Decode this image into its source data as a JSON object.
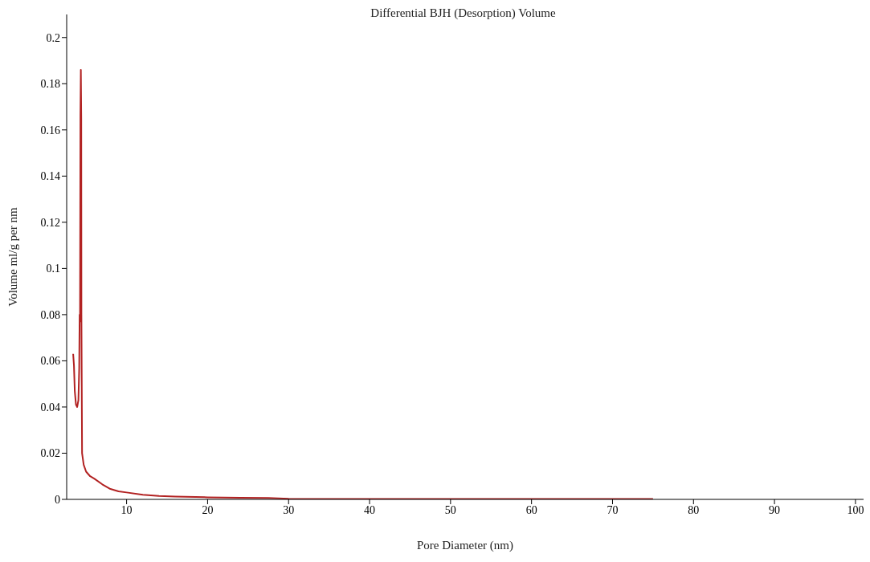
{
  "chart_data": {
    "type": "line",
    "title": "Differential BJH (Desorption) Volume",
    "xlabel": "Pore Diameter (nm)",
    "ylabel": "Volume ml/g per nm",
    "x": [
      3.4,
      3.5,
      3.6,
      3.75,
      3.9,
      4.05,
      4.15,
      4.2,
      4.25,
      4.3,
      4.35,
      4.4,
      4.42,
      4.5,
      4.7,
      5,
      5.5,
      6,
      7,
      8,
      9,
      10,
      12,
      14,
      16,
      20,
      24,
      27.5,
      30,
      40,
      50,
      60,
      70,
      75
    ],
    "series": [
      {
        "color": "#b22222",
        "values": [
          0.063,
          0.058,
          0.047,
          0.041,
          0.04,
          0.043,
          0.057,
          0.08,
          0.077,
          0.166,
          0.186,
          0.165,
          0.08,
          0.02,
          0.015,
          0.012,
          0.01,
          0.009,
          0.0065,
          0.0045,
          0.0035,
          0.003,
          0.002,
          0.0015,
          0.0012,
          0.0009,
          0.0007,
          0.0006,
          0.0003,
          0.0002,
          0.0002,
          0.0002,
          0.0002,
          0.0002
        ]
      }
    ],
    "xlim": [
      2.6,
      101
    ],
    "xticks": [
      10,
      20,
      30,
      40,
      50,
      60,
      70,
      80,
      90,
      100
    ],
    "ylim": [
      0,
      0.21
    ],
    "yticks": [
      0,
      0.02,
      0.04,
      0.06,
      0.08,
      0.1,
      0.12,
      0.14,
      0.16,
      0.18,
      0.2
    ],
    "grid": false,
    "legend": false,
    "marker": "none",
    "line_style": "solid"
  }
}
